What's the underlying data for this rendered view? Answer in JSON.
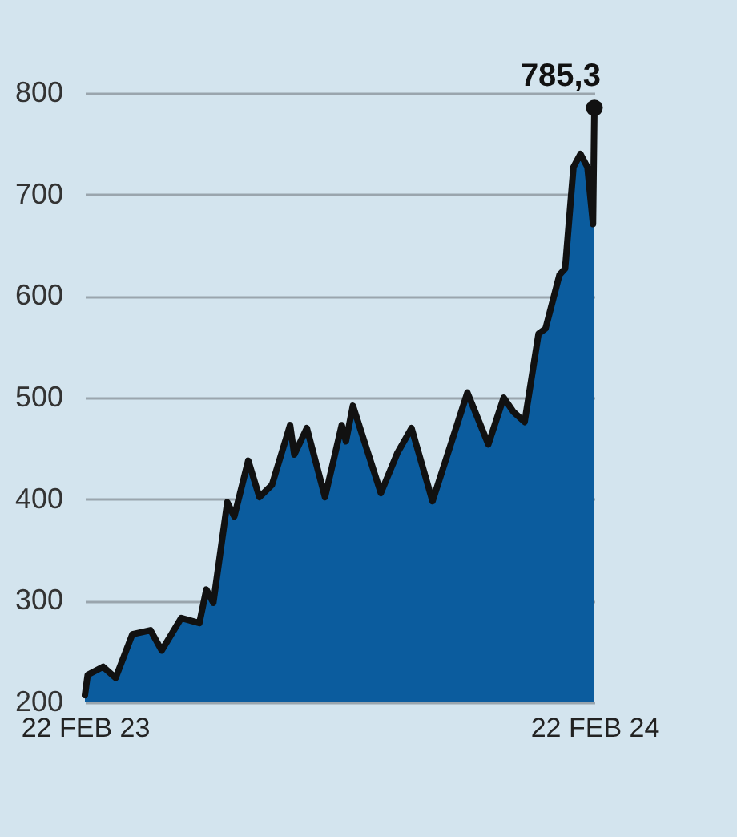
{
  "chart_data": {
    "type": "area",
    "x": [
      "2023-02-22",
      "2023-02-24",
      "2023-03-07",
      "2023-03-16",
      "2023-03-28",
      "2023-04-10",
      "2023-04-18",
      "2023-05-02",
      "2023-05-15",
      "2023-05-20",
      "2023-05-25",
      "2023-06-04",
      "2023-06-09",
      "2023-06-19",
      "2023-06-27",
      "2023-07-06",
      "2023-07-19",
      "2023-07-22",
      "2023-07-31",
      "2023-08-13",
      "2023-08-25",
      "2023-08-28",
      "2023-09-02",
      "2023-09-22",
      "2023-10-04",
      "2023-10-14",
      "2023-10-29",
      "2023-11-23",
      "2023-12-08",
      "2023-12-19",
      "2023-12-26",
      "2024-01-03",
      "2024-01-13",
      "2024-01-18",
      "2024-01-28",
      "2024-02-01",
      "2024-02-07",
      "2024-02-12",
      "2024-02-17",
      "2024-02-21",
      "2024-02-22"
    ],
    "series": [
      {
        "color": "#0b5c9e",
        "values": [
          207,
          227,
          235,
          224,
          267,
          271,
          251,
          283,
          278,
          311,
          298,
          397,
          383,
          438,
          402,
          414,
          473,
          444,
          470,
          402,
          473,
          457,
          492,
          406,
          446,
          470,
          398,
          505,
          454,
          500,
          486,
          476,
          563,
          568,
          621,
          627,
          727,
          740,
          727,
          671,
          785.3
        ]
      }
    ],
    "xlim": [
      "2023-02-22",
      "2024-02-22"
    ],
    "xticks": [
      {
        "value": "2023-02-22",
        "label": "22 FEB 23"
      },
      {
        "value": "2024-02-22",
        "label": "22 FEB 24"
      }
    ],
    "ylim": [
      200,
      800
    ],
    "yticks": [
      200,
      300,
      400,
      500,
      600,
      700,
      800
    ],
    "grid": "y",
    "annotations": [
      {
        "text": "785,3",
        "x": "2024-02-22",
        "y": 785.3
      }
    ]
  }
}
